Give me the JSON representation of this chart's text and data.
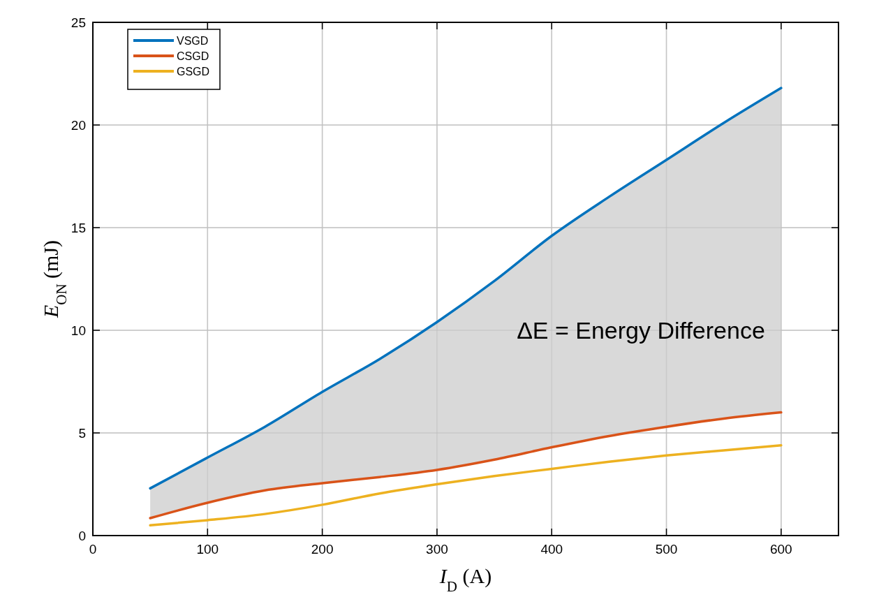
{
  "chart_data": {
    "type": "line",
    "xlabel": "I$_{D}$ (A)",
    "ylabel": "E$_{ON}$ (mJ)",
    "x": [
      50,
      100,
      150,
      200,
      250,
      300,
      350,
      400,
      450,
      500,
      550,
      600
    ],
    "series": [
      {
        "name": "VSGD",
        "color": "#0072bd",
        "values": [
          2.3,
          3.8,
          5.3,
          7.0,
          8.6,
          10.4,
          12.4,
          14.6,
          16.5,
          18.3,
          20.1,
          21.8
        ],
        "lower": [
          0.85,
          1.6,
          2.2,
          2.55,
          2.85,
          3.2,
          3.7,
          4.3,
          4.85,
          5.3,
          5.7,
          6.0
        ],
        "upper": [
          2.3,
          3.8,
          5.3,
          7.0,
          8.6,
          10.4,
          12.4,
          14.6,
          16.5,
          18.3,
          20.1,
          21.8
        ]
      },
      {
        "name": "CSGD",
        "color": "#d95319",
        "values": [
          0.85,
          1.6,
          2.2,
          2.55,
          2.85,
          3.2,
          3.7,
          4.3,
          4.85,
          5.3,
          5.7,
          6.0
        ]
      },
      {
        "name": "GSGD",
        "color": "#edb120",
        "values": [
          0.5,
          0.75,
          1.05,
          1.5,
          2.05,
          2.5,
          2.9,
          3.25,
          3.6,
          3.9,
          4.15,
          4.4
        ]
      }
    ],
    "annotations": [
      "ΔE = Energy Difference"
    ],
    "xlim": [
      0,
      650
    ],
    "xticks": [
      0,
      100,
      200,
      300,
      400,
      500,
      600
    ],
    "ylim": [
      0,
      25
    ],
    "yticks": [
      0,
      5,
      10,
      15,
      20,
      25
    ],
    "grid": true,
    "legend": "top left",
    "line_style": "solid",
    "marker": "none"
  }
}
